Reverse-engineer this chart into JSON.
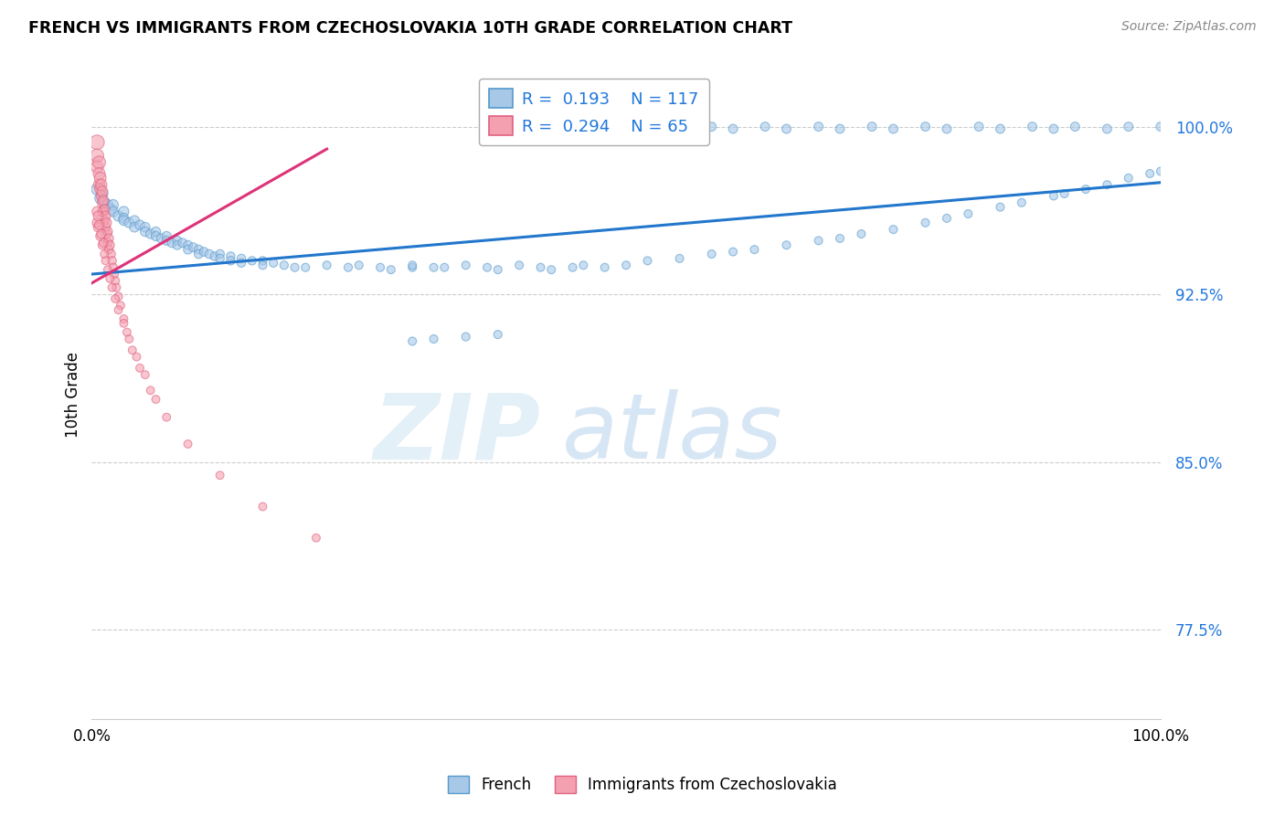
{
  "title": "FRENCH VS IMMIGRANTS FROM CZECHOSLOVAKIA 10TH GRADE CORRELATION CHART",
  "source": "Source: ZipAtlas.com",
  "ylabel": "10th Grade",
  "y_tick_labels": [
    "77.5%",
    "85.0%",
    "92.5%",
    "100.0%"
  ],
  "y_tick_values": [
    0.775,
    0.85,
    0.925,
    1.0
  ],
  "xlim": [
    0.0,
    1.0
  ],
  "ylim": [
    0.735,
    1.025
  ],
  "legend_blue_R": "0.193",
  "legend_blue_N": "117",
  "legend_pink_R": "0.294",
  "legend_pink_N": "65",
  "blue_color": "#a8c8e8",
  "pink_color": "#f4a0b0",
  "blue_edge_color": "#5599cc",
  "pink_edge_color": "#e06080",
  "blue_line_color": "#2277cc",
  "pink_line_color": "#dd3377",
  "watermark_zip": "ZIP",
  "watermark_atlas": "atlas",
  "blue_line": {
    "x0": 0.0,
    "y0": 0.934,
    "x1": 1.0,
    "y1": 0.975
  },
  "pink_line": {
    "x0": 0.0,
    "y0": 0.93,
    "x1": 0.22,
    "y1": 0.99
  },
  "blue_scatter_x": [
    0.005,
    0.008,
    0.01,
    0.012,
    0.015,
    0.018,
    0.02,
    0.02,
    0.025,
    0.03,
    0.03,
    0.03,
    0.035,
    0.04,
    0.04,
    0.045,
    0.05,
    0.05,
    0.055,
    0.06,
    0.06,
    0.065,
    0.07,
    0.07,
    0.075,
    0.08,
    0.08,
    0.085,
    0.09,
    0.09,
    0.095,
    0.1,
    0.1,
    0.105,
    0.11,
    0.115,
    0.12,
    0.12,
    0.13,
    0.13,
    0.14,
    0.14,
    0.15,
    0.16,
    0.16,
    0.17,
    0.18,
    0.19,
    0.2,
    0.22,
    0.24,
    0.25,
    0.27,
    0.28,
    0.3,
    0.3,
    0.32,
    0.33,
    0.35,
    0.37,
    0.38,
    0.4,
    0.42,
    0.43,
    0.45,
    0.46,
    0.48,
    0.5,
    0.52,
    0.55,
    0.58,
    0.6,
    0.62,
    0.65,
    0.68,
    0.7,
    0.72,
    0.75,
    0.78,
    0.8,
    0.82,
    0.85,
    0.87,
    0.9,
    0.91,
    0.93,
    0.95,
    0.97,
    0.99,
    1.0,
    0.4,
    0.42,
    0.44,
    0.46,
    0.5,
    0.53,
    0.55,
    0.58,
    0.6,
    0.63,
    0.65,
    0.68,
    0.7,
    0.73,
    0.75,
    0.78,
    0.8,
    0.83,
    0.85,
    0.88,
    0.9,
    0.92,
    0.95,
    0.97,
    1.0,
    0.38,
    0.35,
    0.32,
    0.3
  ],
  "blue_scatter_y": [
    0.972,
    0.968,
    0.97,
    0.966,
    0.965,
    0.963,
    0.965,
    0.962,
    0.96,
    0.962,
    0.959,
    0.958,
    0.957,
    0.958,
    0.955,
    0.956,
    0.955,
    0.953,
    0.952,
    0.953,
    0.951,
    0.95,
    0.951,
    0.949,
    0.948,
    0.949,
    0.947,
    0.948,
    0.947,
    0.945,
    0.946,
    0.945,
    0.943,
    0.944,
    0.943,
    0.942,
    0.943,
    0.941,
    0.942,
    0.94,
    0.941,
    0.939,
    0.94,
    0.94,
    0.938,
    0.939,
    0.938,
    0.937,
    0.937,
    0.938,
    0.937,
    0.938,
    0.937,
    0.936,
    0.937,
    0.938,
    0.937,
    0.937,
    0.938,
    0.937,
    0.936,
    0.938,
    0.937,
    0.936,
    0.937,
    0.938,
    0.937,
    0.938,
    0.94,
    0.941,
    0.943,
    0.944,
    0.945,
    0.947,
    0.949,
    0.95,
    0.952,
    0.954,
    0.957,
    0.959,
    0.961,
    0.964,
    0.966,
    0.969,
    0.97,
    0.972,
    0.974,
    0.977,
    0.979,
    0.98,
    0.999,
    0.999,
    1.0,
    1.0,
    0.999,
    1.0,
    0.999,
    1.0,
    0.999,
    1.0,
    0.999,
    1.0,
    0.999,
    1.0,
    0.999,
    1.0,
    0.999,
    1.0,
    0.999,
    1.0,
    0.999,
    1.0,
    0.999,
    1.0,
    1.0,
    0.907,
    0.906,
    0.905,
    0.904
  ],
  "blue_scatter_s": [
    80,
    75,
    75,
    70,
    70,
    68,
    68,
    65,
    65,
    65,
    62,
    60,
    60,
    60,
    58,
    58,
    57,
    56,
    55,
    55,
    54,
    53,
    53,
    52,
    51,
    51,
    50,
    50,
    50,
    49,
    49,
    49,
    48,
    48,
    48,
    47,
    47,
    46,
    46,
    45,
    45,
    44,
    44,
    44,
    43,
    43,
    43,
    42,
    42,
    42,
    42,
    42,
    41,
    41,
    41,
    41,
    41,
    41,
    41,
    41,
    41,
    41,
    41,
    41,
    41,
    41,
    41,
    41,
    41,
    41,
    41,
    41,
    41,
    41,
    41,
    41,
    41,
    41,
    41,
    41,
    41,
    41,
    41,
    41,
    41,
    41,
    41,
    41,
    41,
    41,
    50,
    50,
    50,
    50,
    50,
    50,
    50,
    50,
    50,
    50,
    50,
    50,
    50,
    50,
    50,
    50,
    50,
    50,
    50,
    50,
    50,
    50,
    50,
    50,
    50,
    42,
    42,
    42,
    42
  ],
  "pink_scatter_x": [
    0.005,
    0.005,
    0.005,
    0.007,
    0.007,
    0.007,
    0.008,
    0.008,
    0.009,
    0.009,
    0.01,
    0.01,
    0.01,
    0.011,
    0.011,
    0.012,
    0.012,
    0.013,
    0.013,
    0.014,
    0.014,
    0.015,
    0.015,
    0.016,
    0.016,
    0.017,
    0.018,
    0.019,
    0.02,
    0.021,
    0.022,
    0.023,
    0.025,
    0.027,
    0.03,
    0.033,
    0.038,
    0.045,
    0.055,
    0.07,
    0.09,
    0.12,
    0.16,
    0.21,
    0.005,
    0.005,
    0.006,
    0.006,
    0.007,
    0.008,
    0.009,
    0.01,
    0.011,
    0.012,
    0.013,
    0.015,
    0.017,
    0.019,
    0.022,
    0.025,
    0.03,
    0.035,
    0.042,
    0.05,
    0.06
  ],
  "pink_scatter_y": [
    0.993,
    0.987,
    0.982,
    0.984,
    0.979,
    0.974,
    0.977,
    0.972,
    0.974,
    0.969,
    0.971,
    0.966,
    0.962,
    0.967,
    0.962,
    0.963,
    0.958,
    0.96,
    0.955,
    0.957,
    0.952,
    0.953,
    0.948,
    0.95,
    0.945,
    0.947,
    0.943,
    0.94,
    0.937,
    0.934,
    0.931,
    0.928,
    0.924,
    0.92,
    0.914,
    0.908,
    0.9,
    0.892,
    0.882,
    0.87,
    0.858,
    0.844,
    0.83,
    0.816,
    0.962,
    0.957,
    0.96,
    0.955,
    0.956,
    0.951,
    0.952,
    0.947,
    0.948,
    0.943,
    0.94,
    0.936,
    0.932,
    0.928,
    0.923,
    0.918,
    0.912,
    0.905,
    0.897,
    0.889,
    0.878
  ],
  "pink_scatter_s": [
    130,
    110,
    95,
    100,
    88,
    80,
    85,
    75,
    78,
    70,
    73,
    66,
    62,
    65,
    60,
    62,
    57,
    59,
    55,
    57,
    53,
    55,
    51,
    53,
    49,
    51,
    49,
    47,
    46,
    45,
    44,
    43,
    42,
    41,
    40,
    40,
    40,
    40,
    40,
    40,
    40,
    40,
    40,
    40,
    62,
    57,
    60,
    55,
    56,
    51,
    52,
    47,
    48,
    43,
    40,
    40,
    40,
    40,
    40,
    40,
    40,
    40,
    40,
    40,
    40
  ]
}
